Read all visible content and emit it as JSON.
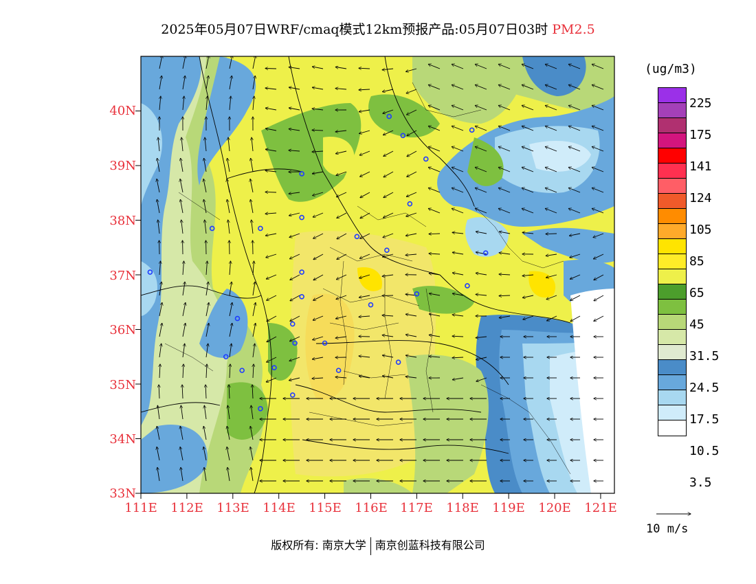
{
  "header": {
    "title_main": "2025年05月07日WRF/cmaq模式12km预报产品:05月07日03时",
    "title_species": "PM2.5"
  },
  "axes": {
    "lat_labels": [
      "40N",
      "39N",
      "38N",
      "37N",
      "36N",
      "35N",
      "34N",
      "33N"
    ],
    "lon_labels": [
      "111E",
      "112E",
      "113E",
      "114E",
      "115E",
      "116E",
      "117E",
      "118E",
      "119E",
      "120E",
      "121E"
    ],
    "lat_range": [
      33,
      41
    ],
    "lon_range": [
      111,
      121.3
    ],
    "label_color": "#e8303a"
  },
  "legend": {
    "unit": "(ug/m3)",
    "labels": [
      "225",
      "175",
      "141",
      "124",
      "105",
      "85",
      "65",
      "45",
      "31.5",
      "24.5",
      "17.5",
      "10.5",
      "3.5"
    ],
    "colors": [
      "#9b30e8",
      "#a440b8",
      "#b03070",
      "#d3157e",
      "#ff0000",
      "#ff3050",
      "#ff5e66",
      "#f05a2a",
      "#ff8c00",
      "#ffaa2a",
      "#ffe400",
      "#ffec28",
      "#eef04a",
      "#4c9e2c",
      "#7ec040",
      "#b8d878",
      "#d6e8a8",
      "#e0ead0",
      "#4a8cc8",
      "#68a8dc",
      "#a8d8f0",
      "#d0ecfa",
      "#ffffff"
    ]
  },
  "wind_vector": {
    "reference_label": "10 m/s"
  },
  "footer": {
    "credit_left": "版权所有: 南京大学",
    "credit_right": "南京创蓝科技有限公司"
  },
  "map_layers": {
    "field": "PM2.5 surface concentration",
    "overlay": [
      "province boundaries",
      "county boundaries",
      "coastline",
      "wind vectors",
      "city markers"
    ],
    "marker_color": "#1f3cff"
  }
}
